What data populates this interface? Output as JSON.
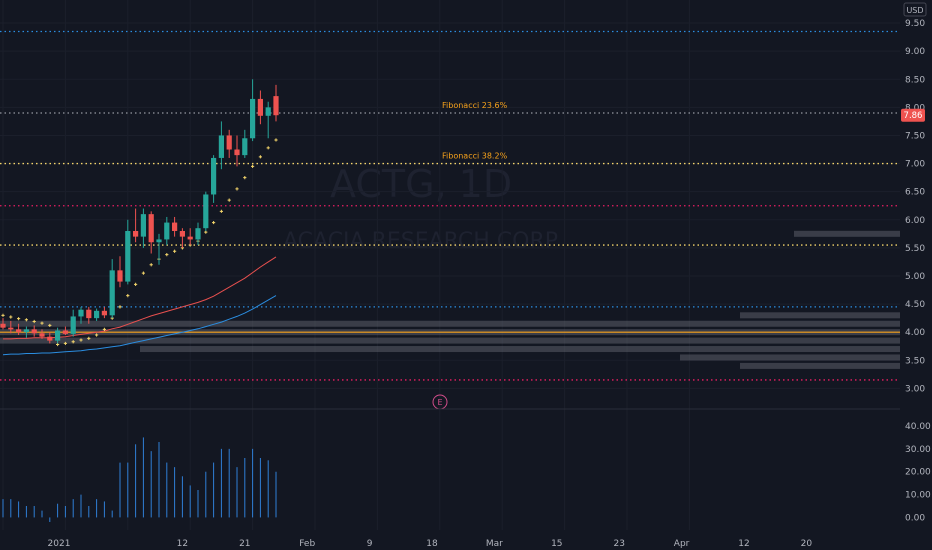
{
  "colors": {
    "background": "#131722",
    "up": "#26a69a",
    "down": "#ef5350",
    "volume": "#2f7fd6",
    "ma_red": "#e8504f",
    "ma_blue": "#2b8de0",
    "sar": "#f5d66b",
    "fib": "#f7a21b",
    "text": "#b2b5be"
  },
  "watermark": {
    "symbol": "ACTG, 1D",
    "name": "ACACIA RESEARCH CORP"
  },
  "chart_data": [
    {
      "type": "candlestick",
      "currency": "USD",
      "last_price": "7.86",
      "ylim": [
        2.9,
        9.75
      ],
      "y_ticks": [
        "9.50",
        "9.00",
        "8.50",
        "8.00",
        "7.50",
        "7.00",
        "6.50",
        "6.00",
        "5.50",
        "5.00",
        "4.50",
        "4.00",
        "3.50",
        "3.00"
      ],
      "x_ticks": [
        "2021",
        "12",
        "21",
        "Feb",
        "9",
        "18",
        "Mar",
        "15",
        "23",
        "Apr",
        "12",
        "20"
      ],
      "x_tick_days": [
        0,
        8,
        16,
        24,
        32,
        40,
        48,
        56,
        64,
        72,
        80,
        88
      ],
      "annotations": [
        {
          "label": "Fibonacci 23.6%",
          "price": 7.9,
          "color": "#f7a21b"
        },
        {
          "label": "Fibonacci 38.2%",
          "price": 7.0,
          "color": "#f7a21b"
        }
      ],
      "levels": [
        {
          "price": 9.35,
          "color": "#2b8de0",
          "style": "dotted"
        },
        {
          "price": 7.9,
          "color": "#9598a1",
          "style": "dotted"
        },
        {
          "price": 7.0,
          "color": "#f5d66b",
          "style": "dotted"
        },
        {
          "price": 6.25,
          "color": "#e91e63",
          "style": "dotted"
        },
        {
          "price": 5.55,
          "color": "#f5d66b",
          "style": "dotted"
        },
        {
          "price": 4.45,
          "color": "#2b8de0",
          "style": "dotted"
        },
        {
          "price": 4.0,
          "color": "#f7a21b",
          "style": "solid"
        },
        {
          "price": 3.15,
          "color": "#e91e63",
          "style": "dotted"
        }
      ],
      "event_marker": {
        "label": "E",
        "day": 28
      },
      "candles": [
        {
          "o": 4.15,
          "h": 4.25,
          "l": 4.05,
          "c": 4.08
        },
        {
          "o": 4.08,
          "h": 4.2,
          "l": 3.98,
          "c": 4.05
        },
        {
          "o": 4.05,
          "h": 4.15,
          "l": 3.95,
          "c": 4.0
        },
        {
          "o": 4.0,
          "h": 4.1,
          "l": 3.9,
          "c": 4.05
        },
        {
          "o": 4.05,
          "h": 4.12,
          "l": 3.92,
          "c": 3.98
        },
        {
          "o": 3.98,
          "h": 4.05,
          "l": 3.88,
          "c": 3.92
        },
        {
          "o": 3.92,
          "h": 4.0,
          "l": 3.8,
          "c": 3.85
        },
        {
          "o": 3.85,
          "h": 4.08,
          "l": 3.8,
          "c": 4.03
        },
        {
          "o": 4.03,
          "h": 4.1,
          "l": 3.95,
          "c": 3.97
        },
        {
          "o": 3.97,
          "h": 4.4,
          "l": 3.92,
          "c": 4.28
        },
        {
          "o": 4.28,
          "h": 4.45,
          "l": 4.15,
          "c": 4.4
        },
        {
          "o": 4.4,
          "h": 4.45,
          "l": 4.15,
          "c": 4.25
        },
        {
          "o": 4.25,
          "h": 4.42,
          "l": 4.2,
          "c": 4.38
        },
        {
          "o": 4.38,
          "h": 4.45,
          "l": 4.25,
          "c": 4.3
        },
        {
          "o": 4.3,
          "h": 5.3,
          "l": 4.25,
          "c": 5.1
        },
        {
          "o": 5.1,
          "h": 5.35,
          "l": 4.8,
          "c": 4.9
        },
        {
          "o": 4.9,
          "h": 6.0,
          "l": 4.85,
          "c": 5.8
        },
        {
          "o": 5.8,
          "h": 6.2,
          "l": 5.6,
          "c": 5.7
        },
        {
          "o": 5.7,
          "h": 6.2,
          "l": 5.5,
          "c": 6.1
        },
        {
          "o": 6.1,
          "h": 6.15,
          "l": 5.4,
          "c": 5.6
        },
        {
          "o": 5.6,
          "h": 5.75,
          "l": 5.2,
          "c": 5.65
        },
        {
          "o": 5.65,
          "h": 6.05,
          "l": 5.55,
          "c": 5.95
        },
        {
          "o": 5.95,
          "h": 6.05,
          "l": 5.7,
          "c": 5.8
        },
        {
          "o": 5.8,
          "h": 5.85,
          "l": 5.5,
          "c": 5.7
        },
        {
          "o": 5.7,
          "h": 5.85,
          "l": 5.55,
          "c": 5.65
        },
        {
          "o": 5.65,
          "h": 5.95,
          "l": 5.55,
          "c": 5.85
        },
        {
          "o": 5.85,
          "h": 6.5,
          "l": 5.8,
          "c": 6.45
        },
        {
          "o": 6.45,
          "h": 7.15,
          "l": 6.3,
          "c": 7.1
        },
        {
          "o": 7.1,
          "h": 7.75,
          "l": 6.9,
          "c": 7.5
        },
        {
          "o": 7.5,
          "h": 7.6,
          "l": 7.1,
          "c": 7.25
        },
        {
          "o": 7.25,
          "h": 7.5,
          "l": 6.95,
          "c": 7.15
        },
        {
          "o": 7.15,
          "h": 7.6,
          "l": 7.1,
          "c": 7.45
        },
        {
          "o": 7.45,
          "h": 8.5,
          "l": 7.4,
          "c": 8.15
        },
        {
          "o": 8.15,
          "h": 8.3,
          "l": 7.7,
          "c": 7.85
        },
        {
          "o": 7.85,
          "h": 8.1,
          "l": 7.45,
          "c": 8.0
        },
        {
          "o": 8.2,
          "h": 8.4,
          "l": 7.75,
          "c": 7.86
        }
      ],
      "ma_red": [
        3.88,
        3.88,
        3.89,
        3.89,
        3.9,
        3.9,
        3.9,
        3.91,
        3.92,
        3.94,
        3.96,
        3.98,
        4.0,
        4.02,
        4.06,
        4.09,
        4.14,
        4.19,
        4.24,
        4.29,
        4.33,
        4.37,
        4.41,
        4.45,
        4.49,
        4.53,
        4.58,
        4.64,
        4.72,
        4.8,
        4.88,
        4.96,
        5.06,
        5.16,
        5.25,
        5.34
      ],
      "ma_blue": [
        3.6,
        3.61,
        3.61,
        3.62,
        3.62,
        3.63,
        3.63,
        3.64,
        3.65,
        3.66,
        3.67,
        3.69,
        3.7,
        3.72,
        3.74,
        3.76,
        3.79,
        3.82,
        3.85,
        3.88,
        3.91,
        3.94,
        3.97,
        4.0,
        4.03,
        4.06,
        4.1,
        4.14,
        4.18,
        4.23,
        4.28,
        4.34,
        4.41,
        4.49,
        4.57,
        4.65
      ],
      "sar": [
        4.3,
        4.27,
        4.24,
        4.22,
        4.19,
        4.16,
        4.12,
        3.78,
        3.8,
        3.83,
        3.86,
        3.89,
        3.95,
        4.05,
        4.25,
        4.45,
        4.65,
        4.85,
        5.05,
        5.2,
        5.3,
        5.38,
        5.44,
        5.5,
        5.55,
        5.62,
        5.78,
        5.95,
        6.15,
        6.35,
        6.55,
        6.75,
        6.95,
        7.12,
        7.28,
        7.42
      ],
      "volume_profile": [
        {
          "price": 5.75,
          "width": 106
        },
        {
          "price": 4.3,
          "width": 160
        },
        {
          "price": 4.15,
          "width": 900
        },
        {
          "price": 4.0,
          "width": 930
        },
        {
          "price": 3.85,
          "width": 900
        },
        {
          "price": 3.7,
          "width": 760
        },
        {
          "price": 3.55,
          "width": 220
        },
        {
          "price": 3.4,
          "width": 160
        }
      ]
    },
    {
      "type": "bar",
      "series_role": "volume",
      "ylim": [
        -2,
        40
      ],
      "y_ticks": [
        "40.00",
        "30.00",
        "20.00",
        "10.00",
        "0.00"
      ],
      "values": [
        8,
        8,
        7,
        5,
        5,
        3,
        -2,
        6,
        5,
        8,
        10,
        5,
        8,
        7,
        3,
        24,
        24,
        32,
        35,
        29,
        33,
        24,
        22,
        18,
        14,
        12,
        20,
        24,
        30,
        30,
        22,
        26,
        30,
        26,
        25,
        20
      ]
    }
  ]
}
